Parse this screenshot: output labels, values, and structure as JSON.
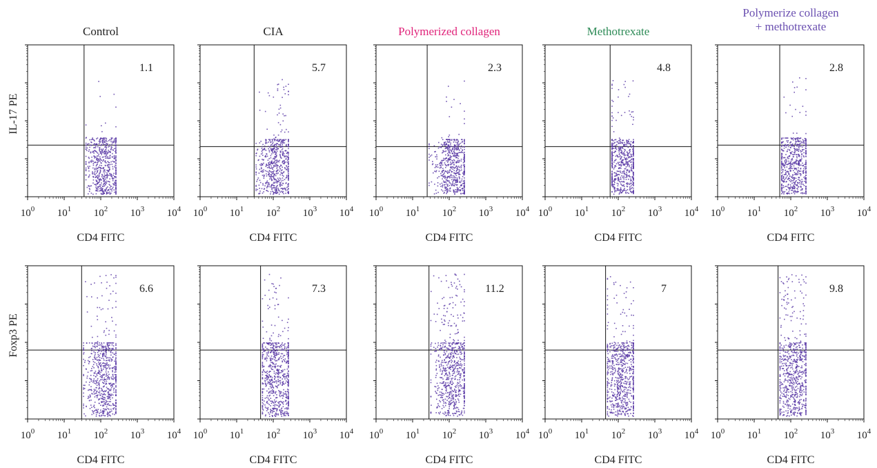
{
  "figure": {
    "column_titles": [
      {
        "text": "Control",
        "color": "#222222"
      },
      {
        "text": "CIA",
        "color": "#222222"
      },
      {
        "text": "Polymerized collagen",
        "color": "#e0237a"
      },
      {
        "text": "Methotrexate",
        "color": "#2e8b57"
      },
      {
        "text": "Polymerize collagen\n+ methotrexate",
        "color": "#6a4fb0"
      }
    ],
    "row_labels": [
      "IL-17 PE",
      "Foxp3 PE"
    ],
    "x_axis_label": "CD4 FITC",
    "x_tick_labels": [
      {
        "base": "10",
        "exp": "0"
      },
      {
        "base": "10",
        "exp": "1"
      },
      {
        "base": "10",
        "exp": "2"
      },
      {
        "base": "10",
        "exp": "3"
      },
      {
        "base": "10",
        "exp": "4"
      }
    ],
    "dot_color": "#5b3aa6"
  },
  "chart_data": [
    {
      "type": "scatter",
      "panel": "IL-17 PE / Control",
      "xlabel": "CD4 FITC",
      "ylabel": "IL-17 PE",
      "x_scale": "log",
      "xlim": [
        1,
        10000
      ],
      "quadrant_gate_x": 35,
      "quadrant_gate_y": 0.34,
      "quadrant_value": "1.1"
    },
    {
      "type": "scatter",
      "panel": "IL-17 PE / CIA",
      "xlabel": "CD4 FITC",
      "ylabel": "IL-17 PE",
      "x_scale": "log",
      "xlim": [
        1,
        10000
      ],
      "quadrant_gate_x": 30,
      "quadrant_gate_y": 0.33,
      "quadrant_value": "5.7"
    },
    {
      "type": "scatter",
      "panel": "IL-17 PE / Polymerized collagen",
      "xlabel": "CD4 FITC",
      "ylabel": "IL-17 PE",
      "x_scale": "log",
      "xlim": [
        1,
        10000
      ],
      "quadrant_gate_x": 25,
      "quadrant_gate_y": 0.33,
      "quadrant_value": "2.3"
    },
    {
      "type": "scatter",
      "panel": "IL-17 PE / Methotrexate",
      "xlabel": "CD4 FITC",
      "ylabel": "IL-17 PE",
      "x_scale": "log",
      "xlim": [
        1,
        10000
      ],
      "quadrant_gate_x": 60,
      "quadrant_gate_y": 0.33,
      "quadrant_value": "4.8"
    },
    {
      "type": "scatter",
      "panel": "IL-17 PE / Polymerize collagen + methotrexate",
      "xlabel": "CD4 FITC",
      "ylabel": "IL-17 PE",
      "x_scale": "log",
      "xlim": [
        1,
        10000
      ],
      "quadrant_gate_x": 50,
      "quadrant_gate_y": 0.34,
      "quadrant_value": "2.8"
    },
    {
      "type": "scatter",
      "panel": "Foxp3 PE / Control",
      "xlabel": "CD4 FITC",
      "ylabel": "Foxp3 PE",
      "x_scale": "log",
      "xlim": [
        1,
        10000
      ],
      "quadrant_gate_x": 30,
      "quadrant_gate_y": 0.45,
      "quadrant_value": "6.6"
    },
    {
      "type": "scatter",
      "panel": "Foxp3 PE / CIA",
      "xlabel": "CD4 FITC",
      "ylabel": "Foxp3 PE",
      "x_scale": "log",
      "xlim": [
        1,
        10000
      ],
      "quadrant_gate_x": 45,
      "quadrant_gate_y": 0.45,
      "quadrant_value": "7.3"
    },
    {
      "type": "scatter",
      "panel": "Foxp3 PE / Polymerized collagen",
      "xlabel": "CD4 FITC",
      "ylabel": "Foxp3 PE",
      "x_scale": "log",
      "xlim": [
        1,
        10000
      ],
      "quadrant_gate_x": 28,
      "quadrant_gate_y": 0.45,
      "quadrant_value": "11.2"
    },
    {
      "type": "scatter",
      "panel": "Foxp3 PE / Methotrexate",
      "xlabel": "CD4 FITC",
      "ylabel": "Foxp3 PE",
      "x_scale": "log",
      "xlim": [
        1,
        10000
      ],
      "quadrant_gate_x": 45,
      "quadrant_gate_y": 0.45,
      "quadrant_value": "7"
    },
    {
      "type": "scatter",
      "panel": "Foxp3 PE / Polymerize collagen + methotrexate",
      "xlabel": "CD4 FITC",
      "ylabel": "Foxp3 PE",
      "x_scale": "log",
      "xlim": [
        1,
        10000
      ],
      "quadrant_gate_x": 45,
      "quadrant_gate_y": 0.45,
      "quadrant_value": "9.8"
    }
  ]
}
